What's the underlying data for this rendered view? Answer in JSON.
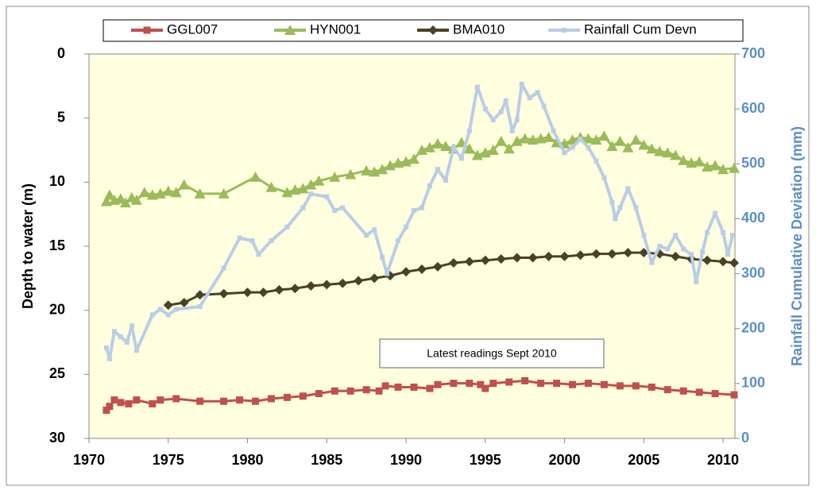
{
  "chart_data": {
    "type": "line",
    "y_label": "Depth to water  (m)",
    "y2_label": "Rainfall Cumulative Deviation (mm)",
    "annotation": "Latest readings  Sept 2010",
    "xlim": [
      1970,
      2010.75
    ],
    "xticks": [
      1970,
      1975,
      1980,
      1985,
      1990,
      1995,
      2000,
      2005,
      2010
    ],
    "ylim": [
      0,
      30
    ],
    "yticks": [
      0,
      5,
      10,
      15,
      20,
      25,
      30
    ],
    "y_inverted": true,
    "y2lim": [
      0,
      700
    ],
    "y2ticks": [
      0,
      100,
      200,
      300,
      400,
      500,
      600,
      700
    ],
    "grid": false,
    "legend": "top",
    "plot_background": "#ffffe0",
    "series": [
      {
        "name": "GGL007",
        "color": "#c0504d",
        "marker": "square",
        "x": [
          1971.1,
          1971.3,
          1971.6,
          1972,
          1972.5,
          1973,
          1974,
          1974.5,
          1975.5,
          1977,
          1978.5,
          1979.5,
          1980.5,
          1981.5,
          1982.5,
          1983.5,
          1984.5,
          1985.5,
          1986.5,
          1987.5,
          1988.3,
          1988.7,
          1989.5,
          1990.5,
          1991.5,
          1992,
          1993,
          1994,
          1994.7,
          1995,
          1995.5,
          1996.5,
          1997.5,
          1998.5,
          1999.5,
          2000.5,
          2001.5,
          2002.5,
          2003.5,
          2004.5,
          2005.5,
          2006.5,
          2007.5,
          2008.5,
          2009.5,
          2010.7
        ],
        "values": [
          27.8,
          27.5,
          27.0,
          27.2,
          27.3,
          27.0,
          27.3,
          27.0,
          26.9,
          27.1,
          27.1,
          27.0,
          27.1,
          26.9,
          26.8,
          26.7,
          26.5,
          26.3,
          26.3,
          26.2,
          26.3,
          25.9,
          26.0,
          26.0,
          26.1,
          25.8,
          25.7,
          25.7,
          25.8,
          26.1,
          25.7,
          25.6,
          25.5,
          25.7,
          25.7,
          25.8,
          25.7,
          25.8,
          25.9,
          25.9,
          26.0,
          26.2,
          26.3,
          26.4,
          26.5,
          26.6
        ]
      },
      {
        "name": "HYN001",
        "color": "#9bbb59",
        "marker": "triangle",
        "x": [
          1971.1,
          1971.3,
          1971.6,
          1972,
          1972.3,
          1972.7,
          1973,
          1973.5,
          1974,
          1974.5,
          1975,
          1975.5,
          1976,
          1977,
          1978.5,
          1980.5,
          1981.5,
          1982.5,
          1983,
          1983.5,
          1984,
          1984.5,
          1985.5,
          1986.5,
          1987.5,
          1988,
          1988.5,
          1989,
          1989.5,
          1990,
          1990.5,
          1991,
          1991.5,
          1992,
          1992.5,
          1993,
          1993.5,
          1994,
          1994.5,
          1995,
          1995.5,
          1996,
          1996.5,
          1997,
          1997.5,
          1998,
          1998.5,
          1999,
          1999.5,
          2000,
          2000.5,
          2001,
          2001.5,
          2002,
          2002.5,
          2003,
          2003.5,
          2004,
          2004.5,
          2005,
          2005.5,
          2006,
          2006.5,
          2007,
          2007.5,
          2008,
          2008.5,
          2009,
          2009.5,
          2010,
          2010.7
        ],
        "values": [
          11.5,
          11.0,
          11.4,
          11.3,
          11.6,
          11.2,
          11.4,
          10.8,
          11.0,
          10.9,
          10.7,
          10.8,
          10.2,
          10.9,
          10.9,
          9.6,
          10.4,
          10.8,
          10.6,
          10.5,
          10.2,
          9.9,
          9.6,
          9.4,
          9.1,
          9.2,
          9.0,
          8.7,
          8.5,
          8.4,
          8.2,
          7.5,
          7.3,
          7.0,
          7.2,
          7.4,
          6.9,
          7.4,
          7.9,
          7.7,
          7.5,
          6.8,
          7.4,
          6.8,
          6.6,
          6.7,
          6.6,
          6.5,
          6.9,
          7.0,
          6.7,
          6.5,
          6.6,
          6.7,
          6.4,
          7.2,
          6.8,
          7.3,
          6.7,
          7.1,
          7.4,
          7.6,
          7.7,
          7.9,
          8.3,
          8.5,
          8.4,
          8.8,
          8.7,
          9.0,
          8.9
        ]
      },
      {
        "name": "BMA010",
        "color": "#4a4128",
        "marker": "diamond",
        "x": [
          1975,
          1976,
          1977,
          1978.5,
          1980,
          1981,
          1982,
          1983,
          1984,
          1985,
          1986,
          1987,
          1988,
          1989,
          1990,
          1991,
          1992,
          1993,
          1994,
          1995,
          1996,
          1997,
          1998,
          1999,
          2000,
          2001,
          2002,
          2003,
          2004,
          2005,
          2006,
          2007,
          2008,
          2009,
          2010,
          2010.7
        ],
        "values": [
          19.6,
          19.4,
          18.8,
          18.7,
          18.6,
          18.6,
          18.4,
          18.3,
          18.1,
          18.0,
          17.9,
          17.7,
          17.5,
          17.3,
          17.0,
          16.8,
          16.6,
          16.3,
          16.2,
          16.1,
          16.0,
          15.9,
          15.9,
          15.8,
          15.8,
          15.7,
          15.6,
          15.6,
          15.5,
          15.5,
          15.6,
          15.8,
          16.0,
          16.1,
          16.2,
          16.3
        ]
      },
      {
        "name": "Rainfall Cum Devn",
        "color": "#b9cde5",
        "marker": "small-square",
        "axis": "y2",
        "x": [
          1971.1,
          1971.3,
          1971.6,
          1972,
          1972.4,
          1972.7,
          1973,
          1974,
          1974.5,
          1975,
          1975.5,
          1977,
          1978.5,
          1979.5,
          1980.3,
          1980.7,
          1981.5,
          1982.5,
          1983.5,
          1984,
          1985,
          1985.5,
          1986,
          1987.5,
          1988,
          1988.5,
          1988.8,
          1989.5,
          1990,
          1990.5,
          1991,
          1991.5,
          1992,
          1992.5,
          1993,
          1993.5,
          1994,
          1994.5,
          1995,
          1995.5,
          1996,
          1996.3,
          1996.7,
          1997,
          1997.3,
          1997.8,
          1998.3,
          1998.7,
          1999.3,
          2000,
          2000.5,
          2001,
          2001.5,
          2002,
          2002.5,
          2003,
          2003.2,
          2003.5,
          2004,
          2004.5,
          2005,
          2005.5,
          2006,
          2006.5,
          2007,
          2007.5,
          2008,
          2008.3,
          2008.7,
          2009,
          2009.5,
          2010,
          2010.3,
          2010.6
        ],
        "values": [
          165,
          145,
          195,
          185,
          175,
          205,
          160,
          225,
          235,
          225,
          235,
          240,
          310,
          365,
          360,
          335,
          360,
          385,
          420,
          445,
          440,
          415,
          420,
          370,
          380,
          330,
          300,
          360,
          385,
          415,
          420,
          460,
          490,
          470,
          530,
          510,
          560,
          640,
          600,
          580,
          595,
          615,
          560,
          580,
          645,
          620,
          630,
          605,
          560,
          520,
          530,
          545,
          530,
          505,
          475,
          430,
          400,
          420,
          455,
          420,
          370,
          320,
          350,
          345,
          370,
          345,
          335,
          285,
          340,
          375,
          410,
          375,
          335,
          370
        ]
      }
    ]
  }
}
